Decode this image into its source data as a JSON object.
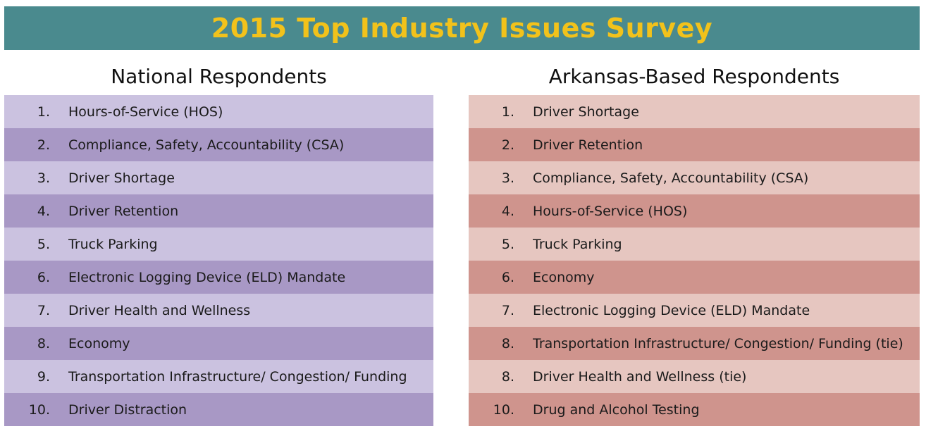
{
  "title": "2015 Top Industry Issues Survey",
  "colors": {
    "banner": "#4a8a8e",
    "title_text": "#f2c21b",
    "national_light": "#cbc2e0",
    "national_dark": "#a898c5",
    "arkansas_light": "#e6c6c0",
    "arkansas_dark": "#cf948d"
  },
  "national": {
    "heading": "National Respondents",
    "items": [
      {
        "rank": "1.",
        "label": "Hours-of-Service (HOS)"
      },
      {
        "rank": "2.",
        "label": "Compliance, Safety, Accountability (CSA)"
      },
      {
        "rank": "3.",
        "label": "Driver Shortage"
      },
      {
        "rank": "4.",
        "label": "Driver Retention"
      },
      {
        "rank": "5.",
        "label": "Truck Parking"
      },
      {
        "rank": "6.",
        "label": "Electronic Logging Device (ELD) Mandate"
      },
      {
        "rank": "7.",
        "label": "Driver Health and Wellness"
      },
      {
        "rank": "8.",
        "label": "Economy"
      },
      {
        "rank": "9.",
        "label": "Transportation Infrastructure/ Congestion/ Funding"
      },
      {
        "rank": "10.",
        "label": "Driver Distraction"
      }
    ]
  },
  "arkansas": {
    "heading": "Arkansas-Based Respondents",
    "items": [
      {
        "rank": "1.",
        "label": "Driver Shortage"
      },
      {
        "rank": "2.",
        "label": "Driver Retention"
      },
      {
        "rank": "3.",
        "label": "Compliance, Safety, Accountability (CSA)"
      },
      {
        "rank": "4.",
        "label": "Hours-of-Service (HOS)"
      },
      {
        "rank": "5.",
        "label": "Truck Parking"
      },
      {
        "rank": "6.",
        "label": "Economy"
      },
      {
        "rank": "7.",
        "label": "Electronic Logging Device (ELD) Mandate"
      },
      {
        "rank": "8.",
        "label": "Transportation Infrastructure/ Congestion/ Funding  (tie)"
      },
      {
        "rank": "8.",
        "label": "Driver Health and Wellness (tie)"
      },
      {
        "rank": "10.",
        "label": "Drug and Alcohol Testing"
      }
    ]
  }
}
